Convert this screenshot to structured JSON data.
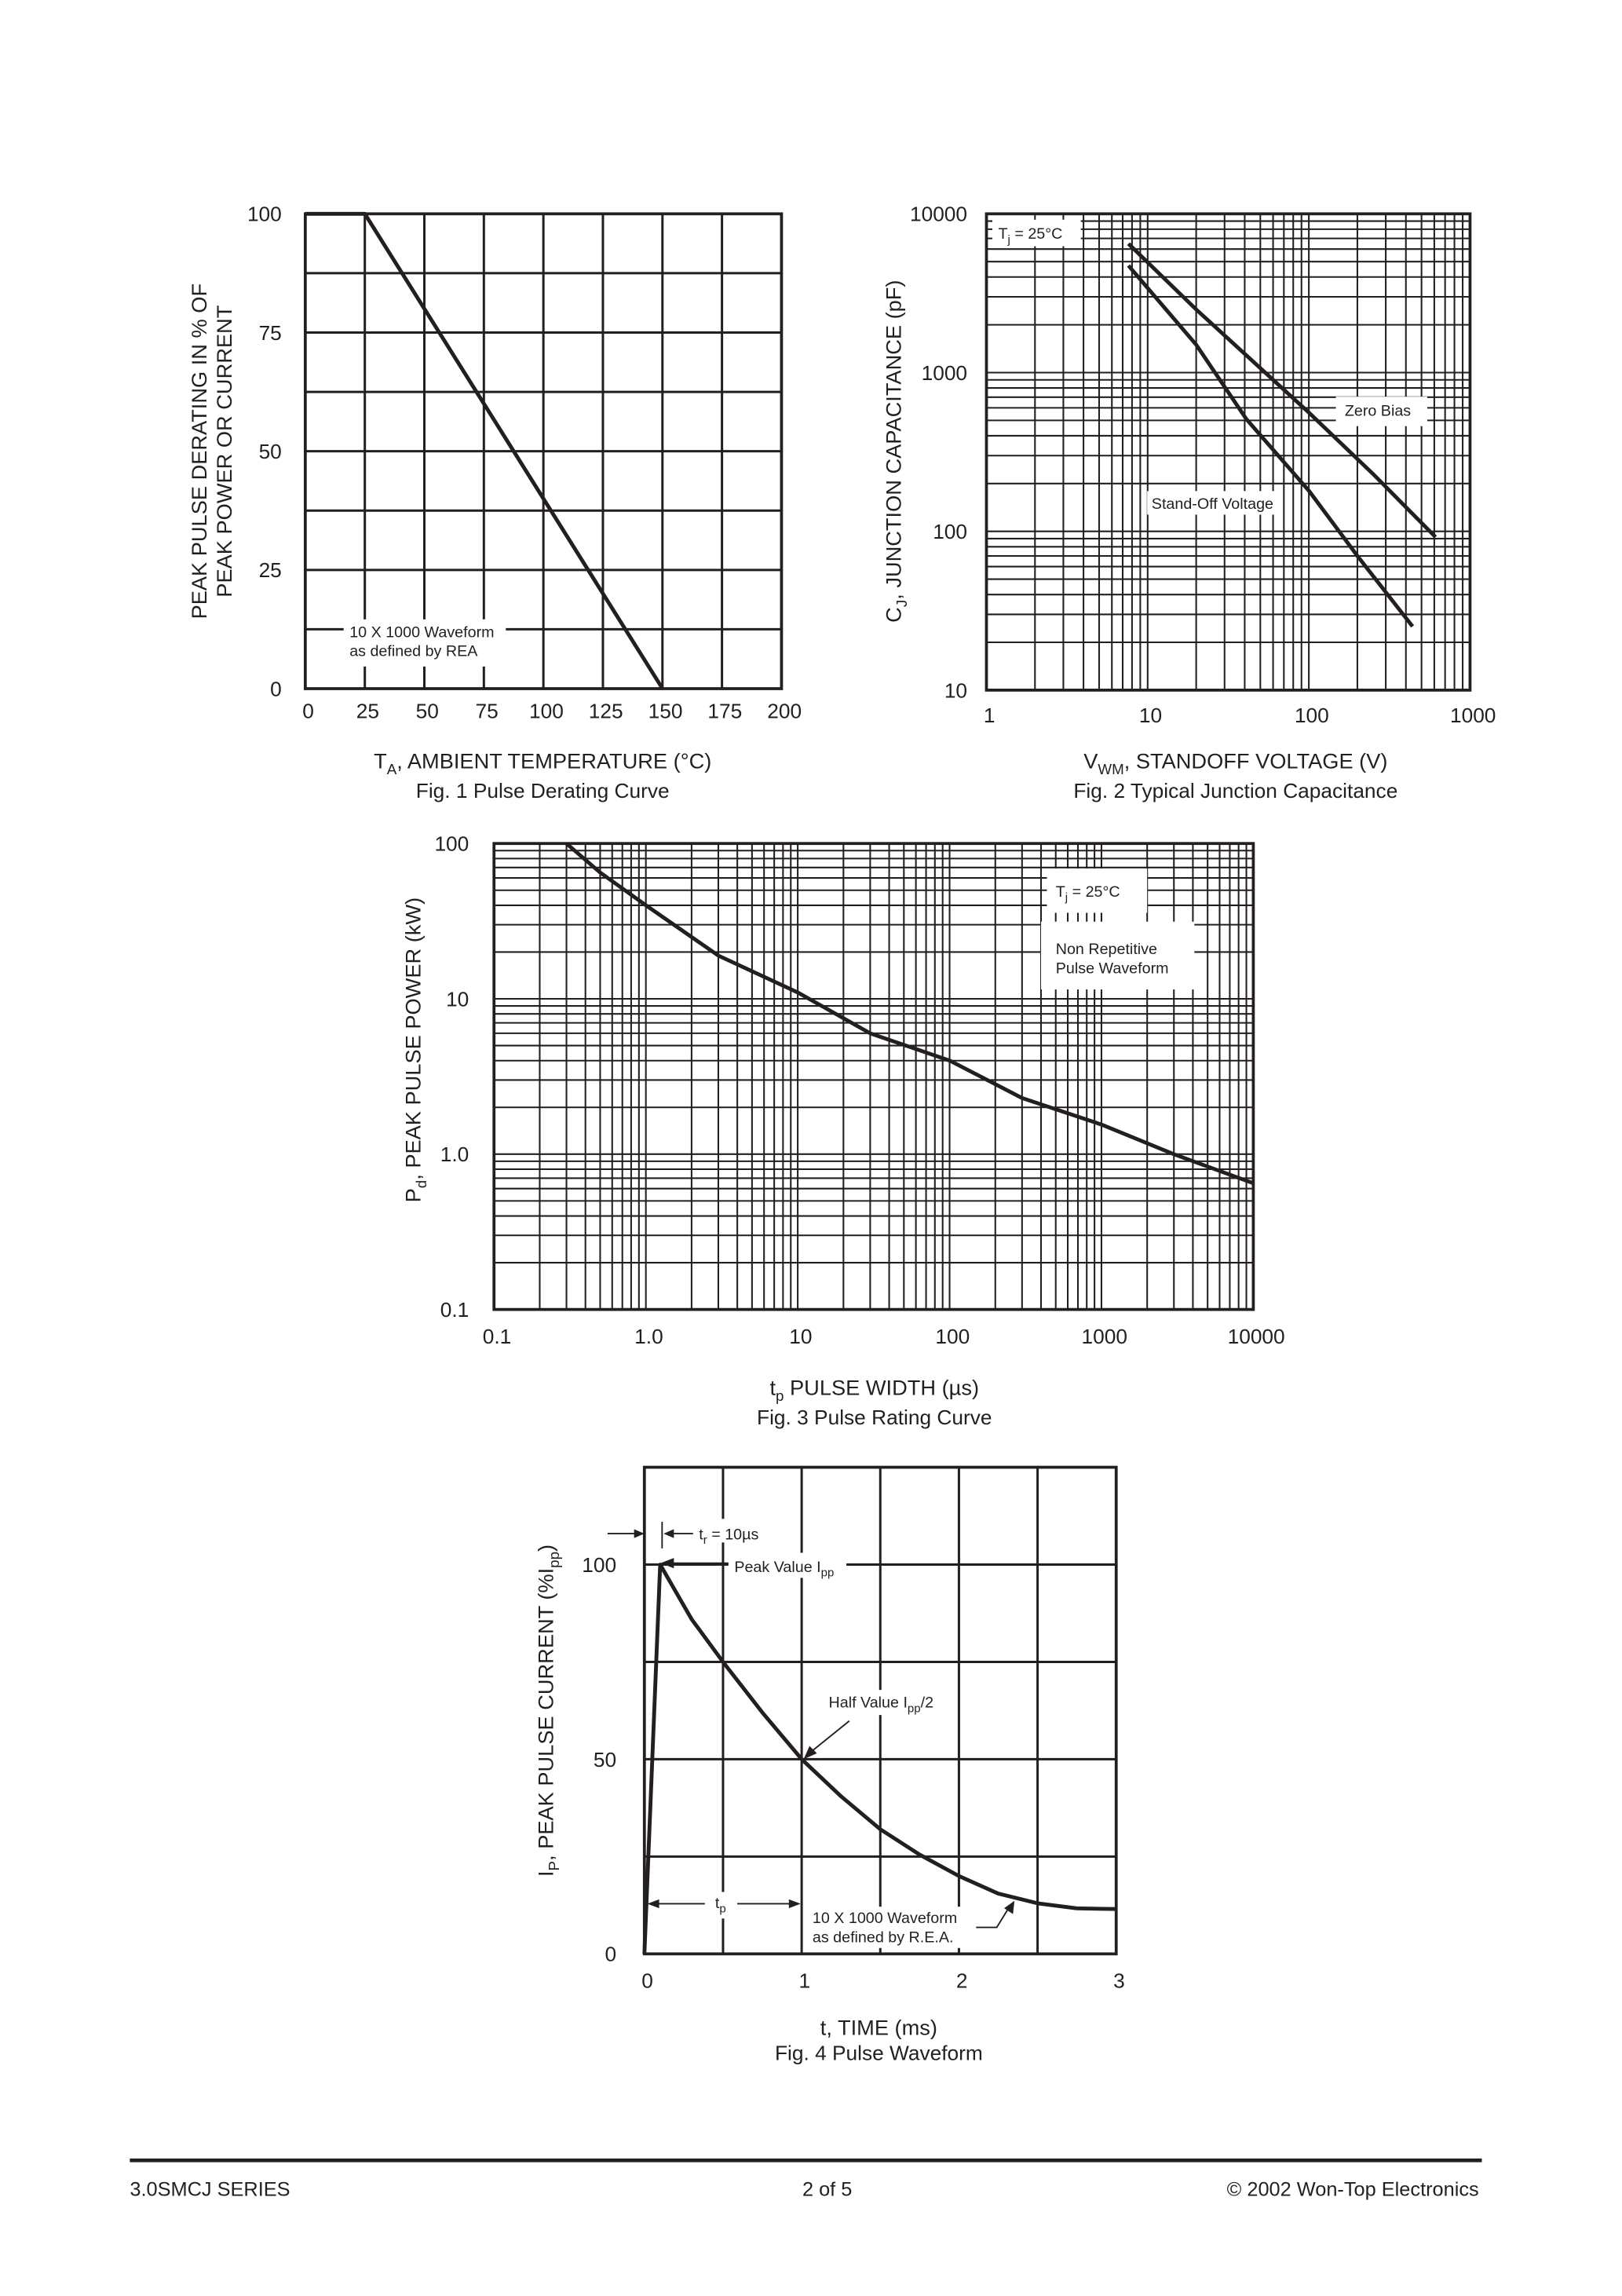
{
  "footer": {
    "series": "3.0SMCJ SERIES",
    "page": "2  of  5",
    "copyright": "© 2002 Won-Top Electronics"
  },
  "chart_data": [
    {
      "type": "line",
      "caption": "Fig. 1  Pulse Derating Curve",
      "xlabel": {
        "main": "T",
        "sub": "A",
        "rest": ", AMBIENT TEMPERATURE (°C)"
      },
      "ylabel": [
        "PEAK PULSE DERATING IN % OF",
        "PEAK POWER OR CURRENT"
      ],
      "xlim": [
        0,
        200
      ],
      "ylim": [
        0,
        100
      ],
      "xticks": [
        "0",
        "25",
        "50",
        "75",
        "100",
        "125",
        "150",
        "175",
        "200"
      ],
      "yticks": [
        "0",
        "25",
        "50",
        "75",
        "100"
      ],
      "grid": true,
      "annotation": [
        "10 X 1000 Waveform",
        "as defined by REA"
      ],
      "series": [
        {
          "x": [
            0,
            25,
            150
          ],
          "y": [
            100,
            100,
            0
          ]
        }
      ]
    },
    {
      "type": "line",
      "caption": "Fig. 2  Typical Junction Capacitance",
      "xlabel": {
        "main": "V",
        "sub": "WM",
        "rest": ", STANDOFF VOLTAGE (V)"
      },
      "ylabel": {
        "main": "C",
        "sub": "J",
        "rest": ", JUNCTION CAPACITANCE (pF)"
      },
      "xscale": "log",
      "yscale": "log",
      "xlim": [
        1,
        1000
      ],
      "ylim": [
        10,
        10000
      ],
      "xticks": [
        "1",
        "10",
        "100",
        "1000"
      ],
      "yticks": [
        "10",
        "100",
        "1000",
        "10000"
      ],
      "grid": true,
      "condition": {
        "main": "T",
        "sub": "j",
        "rest": " = 25°C"
      },
      "series": [
        {
          "name": "Zero Bias",
          "x": [
            7.6,
            20,
            41,
            100,
            250,
            611
          ],
          "y": [
            6480,
            2500,
            1284,
            560,
            230,
            92
          ]
        },
        {
          "name": "Stand-Off Voltage",
          "x": [
            7.6,
            20,
            41,
            100,
            200,
            440
          ],
          "y": [
            4720,
            1500,
            509,
            180,
            70,
            25.2
          ]
        }
      ]
    },
    {
      "type": "line",
      "caption": "Fig. 3 Pulse Rating Curve",
      "xlabel": {
        "main": "t",
        "sub": "p",
        "rest": " PULSE WIDTH (µs)"
      },
      "ylabel": {
        "main": "P",
        "sub": "d",
        "rest": ", PEAK PULSE POWER (kW)"
      },
      "xscale": "log",
      "yscale": "log",
      "xlim": [
        0.1,
        10000
      ],
      "ylim": [
        0.1,
        100
      ],
      "xticks": [
        "0.1",
        "1.0",
        "10",
        "100",
        "1000",
        "10000"
      ],
      "yticks": [
        "0.1",
        "1.0",
        "10",
        "100"
      ],
      "grid": true,
      "condition": {
        "main": "T",
        "sub": "j",
        "rest": " = 25°C"
      },
      "annotation": [
        "Non Repetitive",
        "Pulse Waveform"
      ],
      "series": [
        {
          "x": [
            0.3,
            0.5,
            1,
            3,
            10,
            30,
            100,
            300,
            1000,
            3000,
            10000
          ],
          "y": [
            100,
            65,
            40,
            19,
            11,
            6,
            4,
            2.3,
            1.55,
            1.0,
            0.65
          ]
        }
      ]
    },
    {
      "type": "line",
      "caption": "Fig. 4  Pulse Waveform",
      "xlabel": {
        "main": "t, TIME (ms)"
      },
      "ylabel": {
        "main": "I",
        "sub": "P",
        "rest": ", PEAK PULSE CURRENT (%I",
        "sub2": "pp",
        "rest2": ")"
      },
      "xlim": [
        0,
        3
      ],
      "ylim": [
        0,
        125
      ],
      "xticks": [
        "0",
        "1",
        "2",
        "3"
      ],
      "yticks": [
        "0",
        "50",
        "100"
      ],
      "grid": true,
      "annotations": {
        "rise": {
          "main": "t",
          "sub": "r",
          "rest": " = 10µs"
        },
        "peak": {
          "main": "Peak Value I",
          "sub": "pp"
        },
        "half": {
          "main": "Half Value I",
          "sub": "pp",
          "rest": "/2"
        },
        "tp": {
          "main": "t",
          "sub": "p"
        },
        "waveform": [
          "10 X 1000 Waveform",
          "as defined by R.E.A."
        ]
      },
      "series": [
        {
          "x": [
            0,
            0.1,
            0.3,
            0.5,
            0.75,
            1,
            1.25,
            1.5,
            1.75,
            2,
            2.25,
            2.5,
            2.75,
            3
          ],
          "y": [
            0,
            100,
            86,
            75,
            62,
            50,
            40.5,
            32,
            25.5,
            20,
            15.5,
            13,
            11.7,
            11.5
          ]
        }
      ]
    }
  ]
}
